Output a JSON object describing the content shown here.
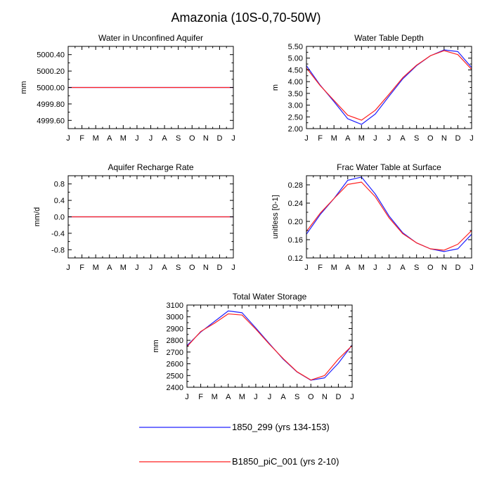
{
  "figure_title": "Amazonia (10S-0,70-50W)",
  "legend": [
    {
      "label": "1850_299 (yrs 134-153)",
      "color": "#2020ff"
    },
    {
      "label": "B1850_piC_001 (yrs 2-10)",
      "color": "#ff2020"
    }
  ],
  "chart_data": [
    {
      "type": "line",
      "title": "Water in Unconfined Aquifer",
      "ylabel": "mm",
      "categories": [
        "J",
        "F",
        "M",
        "A",
        "M",
        "J",
        "J",
        "A",
        "S",
        "O",
        "N",
        "D",
        "J"
      ],
      "ylim": [
        4999.5,
        5000.5
      ],
      "yticks": [
        4999.6,
        4999.8,
        5000.0,
        5000.2,
        5000.4
      ],
      "ytick_labels": [
        "4999.60",
        "4999.80",
        "5000.00",
        "5000.20",
        "5000.40"
      ],
      "series": [
        {
          "name": "1850_299 (yrs 134-153)",
          "values": [
            5000,
            5000,
            5000,
            5000,
            5000,
            5000,
            5000,
            5000,
            5000,
            5000,
            5000,
            5000,
            5000
          ]
        },
        {
          "name": "B1850_piC_001 (yrs 2-10)",
          "values": [
            5000,
            5000,
            5000,
            5000,
            5000,
            5000,
            5000,
            5000,
            5000,
            5000,
            5000,
            5000,
            5000
          ]
        }
      ]
    },
    {
      "type": "line",
      "title": "Water Table Depth",
      "ylabel": "m",
      "categories": [
        "J",
        "F",
        "M",
        "A",
        "M",
        "J",
        "J",
        "A",
        "S",
        "O",
        "N",
        "D",
        "J"
      ],
      "ylim": [
        2.0,
        5.5
      ],
      "yticks": [
        2.0,
        2.5,
        3.0,
        3.5,
        4.0,
        4.5,
        5.0,
        5.5
      ],
      "ytick_labels": [
        "2.00",
        "2.50",
        "3.00",
        "3.50",
        "4.00",
        "4.50",
        "5.00",
        "5.50"
      ],
      "series": [
        {
          "name": "1850_299 (yrs 134-153)",
          "values": [
            4.68,
            3.85,
            3.15,
            2.42,
            2.18,
            2.62,
            3.38,
            4.12,
            4.68,
            5.1,
            5.35,
            5.28,
            4.6
          ]
        },
        {
          "name": "B1850_piC_001 (yrs 2-10)",
          "values": [
            4.58,
            3.83,
            3.2,
            2.57,
            2.36,
            2.78,
            3.46,
            4.17,
            4.7,
            5.1,
            5.32,
            5.15,
            4.52
          ]
        }
      ]
    },
    {
      "type": "line",
      "title": "Aquifer Recharge Rate",
      "ylabel": "mm/d",
      "categories": [
        "J",
        "F",
        "M",
        "A",
        "M",
        "J",
        "J",
        "A",
        "S",
        "O",
        "N",
        "D",
        "J"
      ],
      "ylim": [
        -1.0,
        1.0
      ],
      "yticks": [
        -0.8,
        -0.4,
        0.0,
        0.4,
        0.8
      ],
      "ytick_labels": [
        "-0.8",
        "-0.4",
        "0.0",
        "0.4",
        "0.8"
      ],
      "series": [
        {
          "name": "1850_299 (yrs 134-153)",
          "values": [
            0,
            0,
            0,
            0,
            0,
            0,
            0,
            0,
            0,
            0,
            0,
            0,
            0
          ]
        },
        {
          "name": "B1850_piC_001 (yrs 2-10)",
          "values": [
            0,
            0,
            0,
            0,
            0,
            0,
            0,
            0,
            0,
            0,
            0,
            0,
            0
          ]
        }
      ]
    },
    {
      "type": "line",
      "title": "Frac Water Table at Surface",
      "ylabel": "unitless [0-1]",
      "categories": [
        "J",
        "F",
        "M",
        "A",
        "M",
        "J",
        "J",
        "A",
        "S",
        "O",
        "N",
        "D",
        "J"
      ],
      "ylim": [
        0.12,
        0.3
      ],
      "yticks": [
        0.12,
        0.16,
        0.2,
        0.24,
        0.28
      ],
      "ytick_labels": [
        "0.12",
        "0.16",
        "0.20",
        "0.24",
        "0.28"
      ],
      "series": [
        {
          "name": "1850_299 (yrs 134-153)",
          "values": [
            0.172,
            0.215,
            0.25,
            0.29,
            0.297,
            0.26,
            0.212,
            0.175,
            0.153,
            0.14,
            0.134,
            0.14,
            0.172
          ]
        },
        {
          "name": "B1850_piC_001 (yrs 2-10)",
          "values": [
            0.178,
            0.218,
            0.25,
            0.281,
            0.286,
            0.254,
            0.208,
            0.173,
            0.153,
            0.14,
            0.137,
            0.15,
            0.18
          ]
        }
      ]
    },
    {
      "type": "line",
      "title": "Total Water Storage",
      "ylabel": "mm",
      "categories": [
        "J",
        "F",
        "M",
        "A",
        "M",
        "J",
        "J",
        "A",
        "S",
        "O",
        "N",
        "D",
        "J"
      ],
      "ylim": [
        2400,
        3100
      ],
      "yticks": [
        2400,
        2500,
        2600,
        2700,
        2800,
        2900,
        3000,
        3100
      ],
      "ytick_labels": [
        "2400",
        "2500",
        "2600",
        "2700",
        "2800",
        "2900",
        "3000",
        "3100"
      ],
      "series": [
        {
          "name": "1850_299 (yrs 134-153)",
          "values": [
            2755,
            2870,
            2960,
            3050,
            3035,
            2905,
            2770,
            2638,
            2530,
            2460,
            2480,
            2605,
            2760
          ]
        },
        {
          "name": "B1850_piC_001 (yrs 2-10)",
          "values": [
            2745,
            2875,
            2945,
            3025,
            3015,
            2895,
            2765,
            2643,
            2532,
            2462,
            2500,
            2640,
            2755
          ]
        }
      ]
    }
  ]
}
